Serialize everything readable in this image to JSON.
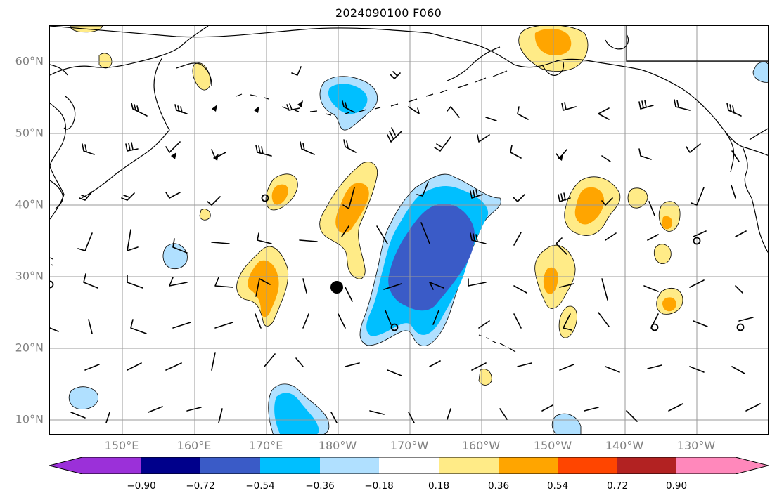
{
  "title": "2024090100 F060",
  "lat_labels": [
    "60°N",
    "50°N",
    "40°N",
    "30°N",
    "20°N",
    "10°N"
  ],
  "lon_labels": [
    "150°E",
    "160°E",
    "170°E",
    "180°W",
    "170°W",
    "160°W",
    "150°W",
    "140°W",
    "130°W"
  ],
  "colorbar": {
    "ticks": [
      "−0.90",
      "−0.72",
      "−0.54",
      "−0.36",
      "−0.18",
      "0.18",
      "0.36",
      "0.54",
      "0.72",
      "0.90"
    ],
    "colors": [
      "#9b30d9",
      "#00008b",
      "#3a5bc7",
      "#00bfff",
      "#b0e0ff",
      "#ffffff",
      "#ffeb87",
      "#ffa500",
      "#ff4500",
      "#b22222",
      "#ff88bb"
    ]
  },
  "fill_colors": {
    "pos_light": "#ffeb87",
    "pos_med": "#ffa500",
    "neg_light": "#b0e0ff",
    "neg_med": "#00bfff",
    "neg_dark": "#3a5bc7"
  },
  "map_features": [
    "coastlines",
    "wind-barbs",
    "lat-lon-grid",
    "tropical-cyclone-marker",
    "closed-circle-markers"
  ]
}
